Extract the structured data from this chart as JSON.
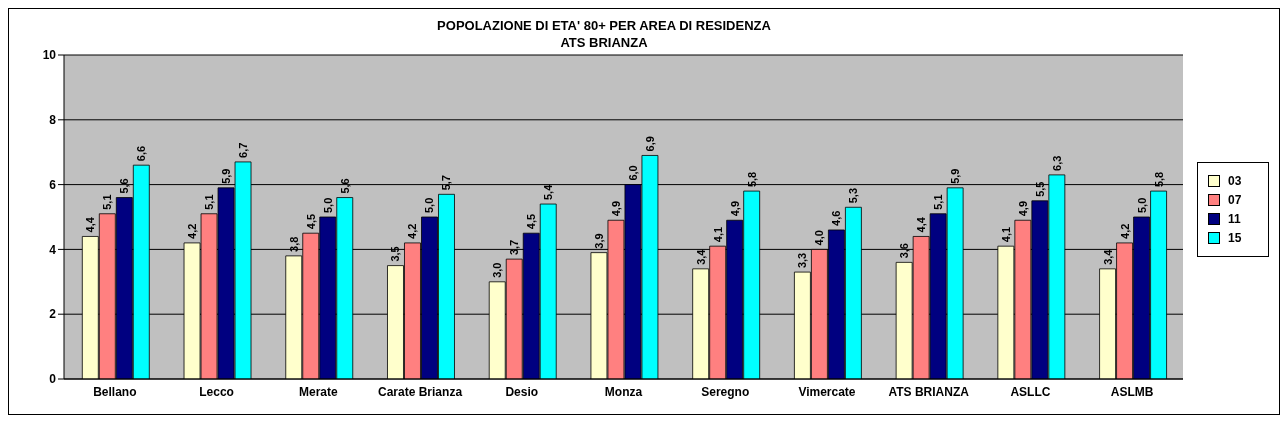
{
  "chart_data": {
    "type": "bar",
    "title": "POPOLAZIONE DI ETA' 80+ PER AREA DI RESIDENZA\nATS  BRIANZA",
    "categories": [
      "Bellano",
      "Lecco",
      "Merate",
      "Carate Brianza",
      "Desio",
      "Monza",
      "Seregno",
      "Vimercate",
      "ATS BRIANZA",
      "ASLLC",
      "ASLMB"
    ],
    "series": [
      {
        "name": "03",
        "color": "#ffffcc",
        "values": [
          4.4,
          4.2,
          3.8,
          3.5,
          3.0,
          3.9,
          3.4,
          3.3,
          3.6,
          4.1,
          3.4
        ],
        "value_labels": [
          "4,4",
          "4,2",
          "3,8",
          "3,5",
          "3,0",
          "3,9",
          "3,4",
          "3,3",
          "3,6",
          "4,1",
          "3,4"
        ]
      },
      {
        "name": "07",
        "color": "#ff8080",
        "values": [
          5.1,
          5.1,
          4.5,
          4.2,
          3.7,
          4.9,
          4.1,
          4.0,
          4.4,
          4.9,
          4.2
        ],
        "value_labels": [
          "5,1",
          "5,1",
          "4,5",
          "4,2",
          "3,7",
          "4,9",
          "4,1",
          "4,0",
          "4,4",
          "4,9",
          "4,2"
        ]
      },
      {
        "name": "11",
        "color": "#000080",
        "values": [
          5.6,
          5.9,
          5.0,
          5.0,
          4.5,
          6.0,
          4.9,
          4.6,
          5.1,
          5.5,
          5.0
        ],
        "value_labels": [
          "5,6",
          "5,9",
          "5,0",
          "5,0",
          "4,5",
          "6,0",
          "4,9",
          "4,6",
          "5,1",
          "5,5",
          "5,0"
        ]
      },
      {
        "name": "15",
        "color": "#00ffff",
        "values": [
          6.6,
          6.7,
          5.6,
          5.7,
          5.4,
          6.9,
          5.8,
          5.3,
          5.9,
          6.3,
          5.8
        ],
        "value_labels": [
          "6,6",
          "6,7",
          "5,6",
          "5,7",
          "5,4",
          "6,9",
          "5,8",
          "5,3",
          "5,9",
          "6,3",
          "5,8"
        ]
      }
    ],
    "ylim": [
      0,
      10
    ],
    "yticks": [
      0,
      2,
      4,
      6,
      8,
      10
    ],
    "grid": "y",
    "legend": "right"
  }
}
